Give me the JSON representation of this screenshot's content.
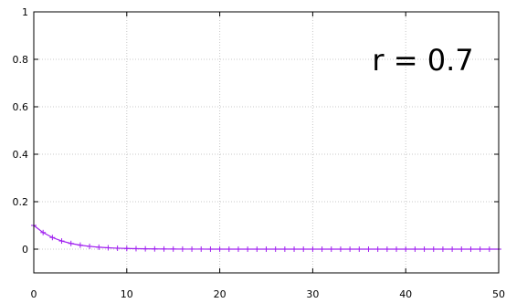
{
  "chart_data": {
    "type": "line",
    "title": "",
    "xlabel": "",
    "ylabel": "",
    "xlim": [
      0,
      50
    ],
    "ylim": [
      -0.1,
      1
    ],
    "xticks": [
      0,
      10,
      20,
      30,
      40,
      50
    ],
    "yticks": [
      0,
      0.2,
      0.4,
      0.6,
      0.8,
      1
    ],
    "grid": true,
    "legend": "none",
    "annotation": "r = 0.7",
    "series": [
      {
        "color": "#a020f0",
        "marker": "plus",
        "x": [
          0,
          1,
          2,
          3,
          4,
          5,
          6,
          7,
          8,
          9,
          10,
          11,
          12,
          13,
          14,
          15,
          16,
          17,
          18,
          19,
          20,
          21,
          22,
          23,
          24,
          25,
          26,
          27,
          28,
          29,
          30,
          31,
          32,
          33,
          34,
          35,
          36,
          37,
          38,
          39,
          40,
          41,
          42,
          43,
          44,
          45,
          46,
          47,
          48,
          49,
          50
        ],
        "y": [
          0.1,
          0.07,
          0.049,
          0.0343,
          0.024,
          0.0168,
          0.0118,
          0.0082,
          0.0058,
          0.004,
          0.0028,
          0.002,
          0.0014,
          0.001,
          0.0007,
          0.0005,
          0.0003,
          0.0002,
          0.0002,
          0.0001,
          0.0001,
          0,
          0,
          0,
          0,
          0,
          0,
          0,
          0,
          0,
          0,
          0,
          0,
          0,
          0,
          0,
          0,
          0,
          0,
          0,
          0,
          0,
          0,
          0,
          0,
          0,
          0,
          0,
          0,
          0,
          0
        ]
      }
    ]
  }
}
